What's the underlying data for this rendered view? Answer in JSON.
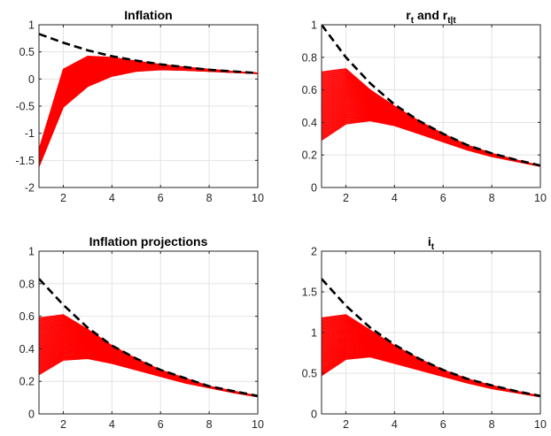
{
  "chart_data": [
    {
      "type": "line",
      "title": "Inflation",
      "xlim": [
        1,
        10
      ],
      "ylim": [
        -2,
        1
      ],
      "xticks": [
        2,
        4,
        6,
        8,
        10
      ],
      "yticks": [
        -2,
        -1.5,
        -1,
        -0.5,
        0,
        0.5,
        1
      ],
      "ytick_labels": [
        "-2",
        "-1.5",
        "-1",
        "-0.5",
        "0",
        "0.5",
        "1"
      ],
      "grid": true,
      "x": [
        1,
        2,
        3,
        4,
        5,
        6,
        7,
        8,
        9,
        10
      ],
      "dashed_series": {
        "color": "#000000",
        "values": [
          0.83,
          0.67,
          0.53,
          0.42,
          0.34,
          0.27,
          0.22,
          0.17,
          0.14,
          0.11
        ]
      },
      "band": {
        "color": "#ff0000",
        "upper": [
          -1.3,
          0.18,
          0.42,
          0.4,
          0.33,
          0.27,
          0.22,
          0.18,
          0.14,
          0.11
        ],
        "lower": [
          -1.62,
          -0.52,
          -0.14,
          0.05,
          0.14,
          0.17,
          0.16,
          0.14,
          0.12,
          0.1
        ]
      }
    },
    {
      "type": "line",
      "title": "r",
      "title_parts": [
        "r",
        "t",
        " and r",
        "t|t"
      ],
      "xlim": [
        1,
        10
      ],
      "ylim": [
        0,
        1
      ],
      "xticks": [
        2,
        4,
        6,
        8,
        10
      ],
      "yticks": [
        0,
        0.2,
        0.4,
        0.6,
        0.8,
        1
      ],
      "ytick_labels": [
        "0",
        "0.2",
        "0.4",
        "0.6",
        "0.8",
        "1"
      ],
      "grid": true,
      "x": [
        1,
        2,
        3,
        4,
        5,
        6,
        7,
        8,
        9,
        10
      ],
      "dashed_series": {
        "color": "#000000",
        "values": [
          1.0,
          0.8,
          0.64,
          0.51,
          0.41,
          0.33,
          0.26,
          0.21,
          0.17,
          0.135
        ]
      },
      "band": {
        "color": "#ff0000",
        "upper": [
          0.71,
          0.73,
          0.6,
          0.5,
          0.41,
          0.33,
          0.26,
          0.21,
          0.17,
          0.133
        ],
        "lower": [
          0.29,
          0.39,
          0.41,
          0.38,
          0.33,
          0.28,
          0.23,
          0.19,
          0.16,
          0.13
        ]
      }
    },
    {
      "type": "line",
      "title": "Inflation projections",
      "xlim": [
        1,
        10
      ],
      "ylim": [
        0,
        1
      ],
      "xticks": [
        2,
        4,
        6,
        8,
        10
      ],
      "yticks": [
        0,
        0.2,
        0.4,
        0.6,
        0.8,
        1
      ],
      "ytick_labels": [
        "0",
        "0.2",
        "0.4",
        "0.6",
        "0.8",
        "1"
      ],
      "grid": true,
      "x": [
        1,
        2,
        3,
        4,
        5,
        6,
        7,
        8,
        9,
        10
      ],
      "dashed_series": {
        "color": "#000000",
        "values": [
          0.83,
          0.67,
          0.53,
          0.42,
          0.34,
          0.27,
          0.22,
          0.17,
          0.14,
          0.11
        ]
      },
      "band": {
        "color": "#ff0000",
        "upper": [
          0.59,
          0.61,
          0.52,
          0.42,
          0.34,
          0.27,
          0.22,
          0.17,
          0.14,
          0.11
        ],
        "lower": [
          0.24,
          0.33,
          0.34,
          0.31,
          0.27,
          0.23,
          0.19,
          0.16,
          0.13,
          0.105
        ]
      }
    },
    {
      "type": "line",
      "title": "i",
      "title_parts": [
        "i",
        "t"
      ],
      "xlim": [
        1,
        10
      ],
      "ylim": [
        0,
        2
      ],
      "xticks": [
        2,
        4,
        6,
        8,
        10
      ],
      "yticks": [
        0,
        0.5,
        1,
        1.5,
        2
      ],
      "ytick_labels": [
        "0",
        "0.5",
        "1",
        "1.5",
        "2"
      ],
      "grid": true,
      "x": [
        1,
        2,
        3,
        4,
        5,
        6,
        7,
        8,
        9,
        10
      ],
      "dashed_series": {
        "color": "#000000",
        "values": [
          1.66,
          1.33,
          1.06,
          0.85,
          0.68,
          0.54,
          0.43,
          0.35,
          0.28,
          0.22
        ]
      },
      "band": {
        "color": "#ff0000",
        "upper": [
          1.18,
          1.22,
          1.03,
          0.84,
          0.68,
          0.54,
          0.43,
          0.35,
          0.28,
          0.22
        ],
        "lower": [
          0.47,
          0.67,
          0.7,
          0.62,
          0.54,
          0.46,
          0.38,
          0.31,
          0.26,
          0.21
        ]
      }
    }
  ]
}
